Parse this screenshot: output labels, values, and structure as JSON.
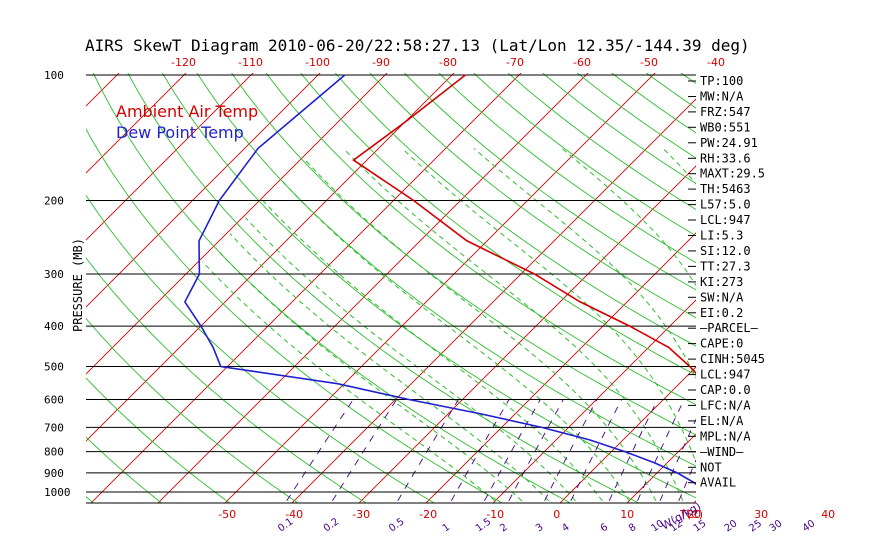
{
  "chart_data": {
    "type": "line",
    "title": "AIRS SkewT Diagram 2010-06-20/22:58:27.13 (Lat/Lon 12.35/-144.39 deg)",
    "ylabel": "PRESSURE (MB)",
    "y_scale": "log",
    "ylim": [
      1050,
      100
    ],
    "pressure_ticks": [
      100,
      200,
      300,
      400,
      500,
      600,
      700,
      800,
      900,
      1000
    ],
    "top_temp_ticks": [
      "-120",
      "-110",
      "-100",
      "-90",
      "-80",
      "-70",
      "-60",
      "-50",
      "-40"
    ],
    "bottom_temp_ticks": [
      "-50",
      "-40",
      "-30",
      "-20",
      "-10",
      "0",
      "10",
      "20",
      "30",
      "40"
    ],
    "bottom_temp_unit": "T(C)",
    "mixing_ratio_ticks": [
      "0.1",
      "0.2",
      "0.5",
      "1",
      "1.5",
      "2",
      "3",
      "4",
      "6",
      "8",
      "10",
      "12",
      "15",
      "20",
      "25",
      "30",
      "40"
    ],
    "mixing_ratio_unit": "W(g/kg)",
    "legend": [
      {
        "name": "Ambient Air Temp",
        "color": "#d40000"
      },
      {
        "name": "Dew Point Temp",
        "color": "#1f1fd0"
      }
    ],
    "legend_position": "top-left",
    "series": [
      {
        "name": "Ambient Air Temp",
        "color": "#d40000",
        "points": [
          [
            100,
            -78
          ],
          [
            130,
            -80
          ],
          [
            160,
            -82
          ],
          [
            200,
            -67
          ],
          [
            250,
            -53
          ],
          [
            300,
            -38
          ],
          [
            350,
            -27
          ],
          [
            400,
            -16
          ],
          [
            450,
            -7
          ],
          [
            500,
            -1
          ],
          [
            550,
            4
          ],
          [
            600,
            8
          ],
          [
            650,
            12
          ],
          [
            700,
            15
          ],
          [
            750,
            18
          ],
          [
            800,
            21
          ],
          [
            850,
            23
          ],
          [
            900,
            25
          ],
          [
            925,
            26
          ],
          [
            950,
            25
          ],
          [
            1000,
            25
          ],
          [
            1013,
            27
          ]
        ]
      },
      {
        "name": "Dew Point Temp",
        "color": "#1f1fd0",
        "points": [
          [
            100,
            -96
          ],
          [
            150,
            -98
          ],
          [
            200,
            -96
          ],
          [
            250,
            -93
          ],
          [
            300,
            -88
          ],
          [
            350,
            -86
          ],
          [
            400,
            -80
          ],
          [
            450,
            -75
          ],
          [
            500,
            -71
          ],
          [
            550,
            -51
          ],
          [
            600,
            -38
          ],
          [
            650,
            -25
          ],
          [
            700,
            -14
          ],
          [
            750,
            -5
          ],
          [
            800,
            2
          ],
          [
            850,
            8
          ],
          [
            900,
            13
          ],
          [
            950,
            17
          ],
          [
            1000,
            20
          ],
          [
            1013,
            21
          ]
        ]
      }
    ],
    "indices": [
      "TP:100",
      "MW:N/A",
      "FRZ:547",
      "WB0:551",
      "PW:24.91",
      "RH:33.6",
      "MAXT:29.5",
      "TH:5463",
      "L57:5.0",
      "LCL:947",
      "LI:5.3",
      "SI:12.0",
      "TT:27.3",
      "KI:273",
      "SW:N/A",
      "EI:0.2",
      "—PARCEL—",
      "CAPE:0",
      "CINH:5045",
      "LCL:947",
      "CAP:0.0",
      "LFC:N/A",
      "EL:N/A",
      "MPL:N/A",
      "—WIND—",
      "NOT",
      "AVAIL"
    ],
    "colors": {
      "isotherm": "#d40000",
      "dry_adiabat": "#2ebd2e",
      "moist_adiabat": "#2ebd2e",
      "mixing_ratio": "#4b0082",
      "isobar": "#000000"
    }
  }
}
